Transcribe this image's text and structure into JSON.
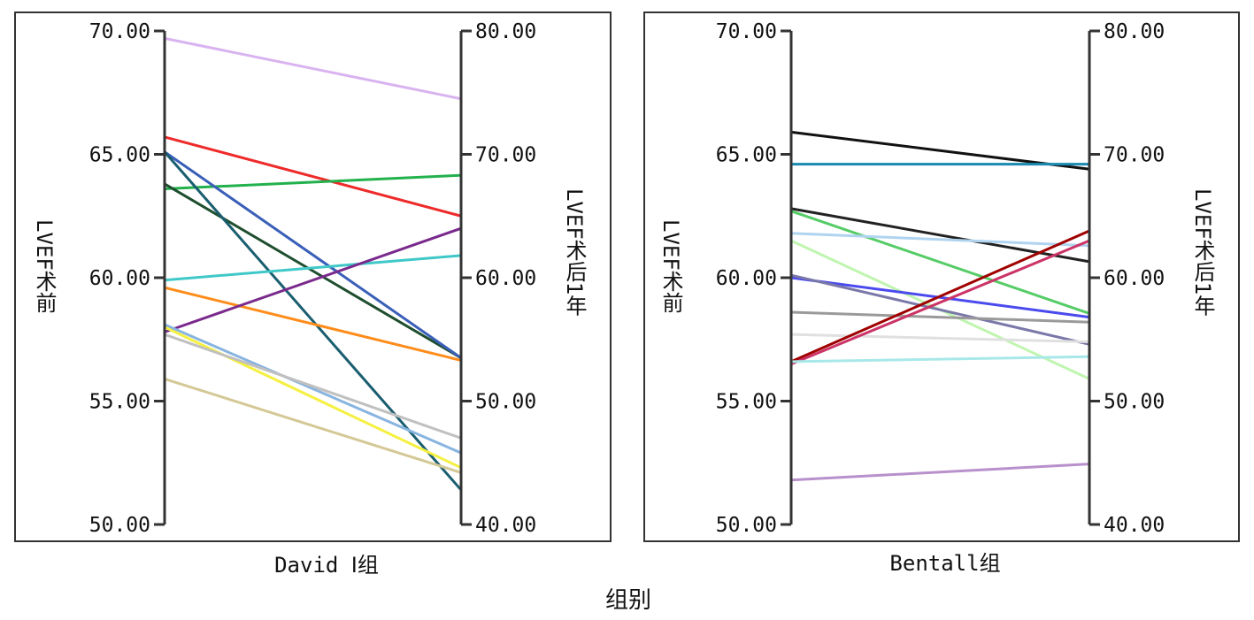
{
  "chart_data": {
    "type": "line",
    "x_title": "组别",
    "panels": [
      {
        "group": "David Ⅰ组",
        "left_axis": {
          "label": "LVEF术前",
          "ylim": [
            50,
            70
          ],
          "ticks": [
            "50.00",
            "55.00",
            "60.00",
            "65.00",
            "70.00"
          ]
        },
        "right_axis": {
          "label": "LVEF术后1年",
          "ylim": [
            40,
            80
          ],
          "ticks": [
            "40.00",
            "50.00",
            "60.00",
            "70.00",
            "80.00"
          ]
        },
        "series": [
          {
            "color": "#d9b3f0",
            "pre": 69.7,
            "post": 74.5
          },
          {
            "color": "#ee2a2a",
            "pre": 65.7,
            "post": 65.0
          },
          {
            "color": "#22b14c",
            "pre": 63.6,
            "post": 68.3
          },
          {
            "color": "#1e4e2e",
            "pre": 63.8,
            "post": 53.5
          },
          {
            "color": "#3a5fb8",
            "pre": 65.1,
            "post": 53.5
          },
          {
            "color": "#1a5e70",
            "pre": 65.1,
            "post": 42.8
          },
          {
            "color": "#40c8c8",
            "pre": 59.9,
            "post": 61.8
          },
          {
            "color": "#ff8c1a",
            "pre": 59.6,
            "post": 53.3
          },
          {
            "color": "#7a2a8c",
            "pre": 57.8,
            "post": 64.0
          },
          {
            "color": "#88b4e0",
            "pre": 58.1,
            "post": 45.8
          },
          {
            "color": "#f5f040",
            "pre": 58.0,
            "post": 44.6
          },
          {
            "color": "#c0c0c0",
            "pre": 57.7,
            "post": 47.0
          },
          {
            "color": "#d4c896",
            "pre": 55.9,
            "post": 44.2
          }
        ]
      },
      {
        "group": "Bentall组",
        "left_axis": {
          "label": "LVEF术前",
          "ylim": [
            50,
            70
          ],
          "ticks": [
            "50.00",
            "55.00",
            "60.00",
            "65.00",
            "70.00"
          ]
        },
        "right_axis": {
          "label": "LVEF术后1年",
          "ylim": [
            40,
            80
          ],
          "ticks": [
            "40.00",
            "50.00",
            "60.00",
            "70.00",
            "80.00"
          ]
        },
        "series": [
          {
            "color": "#111111",
            "pre": 65.9,
            "post": 68.8
          },
          {
            "color": "#1a8ab0",
            "pre": 64.6,
            "post": 69.2
          },
          {
            "color": "#222222",
            "pre": 62.8,
            "post": 61.3
          },
          {
            "color": "#55cc66",
            "pre": 62.7,
            "post": 57.1
          },
          {
            "color": "#b0d4f0",
            "pre": 61.8,
            "post": 62.6
          },
          {
            "color": "#c0f5b0",
            "pre": 61.5,
            "post": 51.8
          },
          {
            "color": "#4a4aee",
            "pre": 60.0,
            "post": 56.8
          },
          {
            "color": "#7a78a8",
            "pre": 60.1,
            "post": 54.6
          },
          {
            "color": "#9a9a9a",
            "pre": 58.6,
            "post": 56.4
          },
          {
            "color": "#e0e0e0",
            "pre": 57.7,
            "post": 54.8
          },
          {
            "color": "#a00000",
            "pre": 56.6,
            "post": 63.8
          },
          {
            "color": "#cc3366",
            "pre": 56.5,
            "post": 63.0
          },
          {
            "color": "#a8e8e8",
            "pre": 56.6,
            "post": 53.6
          },
          {
            "color": "#b890cc",
            "pre": 51.8,
            "post": 44.9
          }
        ]
      }
    ]
  }
}
